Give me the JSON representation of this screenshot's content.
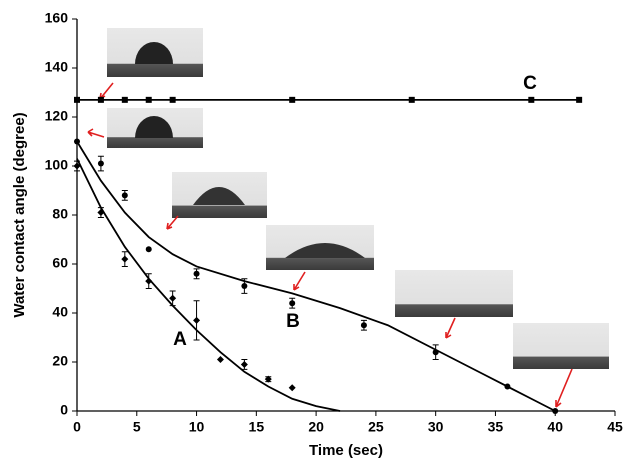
{
  "chart_data": {
    "type": "scatter",
    "x_label": "Time (sec)",
    "y_label": "Water contact angle (degree)",
    "xlim": [
      0,
      45
    ],
    "xticks": [
      0,
      5,
      10,
      15,
      20,
      25,
      30,
      35,
      40,
      45
    ],
    "ylim": [
      0,
      160
    ],
    "yticks": [
      0,
      20,
      40,
      60,
      80,
      100,
      120,
      140,
      160
    ],
    "grid": false,
    "series": [
      {
        "name": "A",
        "color": "#000000",
        "marker": "diamond",
        "x": [
          0,
          2,
          4,
          6,
          8,
          10,
          12,
          14,
          16,
          18
        ],
        "values": [
          100,
          81,
          62,
          53,
          46,
          37,
          21,
          19,
          13,
          9.5
        ],
        "errors": [
          2,
          2,
          3,
          3,
          3,
          8,
          0,
          2,
          1,
          0
        ],
        "fit": {
          "x": [
            0,
            2,
            4,
            6,
            8,
            10,
            12,
            14,
            16,
            18,
            20,
            22
          ],
          "values": [
            103,
            83,
            67,
            54,
            43,
            33,
            24,
            16,
            10,
            5,
            2,
            0
          ]
        }
      },
      {
        "name": "B",
        "color": "#000000",
        "marker": "circle",
        "x": [
          0,
          2,
          4,
          6,
          10,
          14,
          18,
          24,
          30,
          36,
          40
        ],
        "values": [
          110,
          101,
          88,
          66,
          56,
          51,
          44,
          35,
          24,
          10,
          0
        ],
        "errors": [
          0,
          3,
          2,
          0,
          2,
          3,
          2,
          2,
          3,
          0,
          0
        ],
        "fit": {
          "x": [
            0,
            2,
            4,
            6,
            8,
            10,
            14,
            18,
            22,
            26,
            30,
            34,
            38,
            40
          ],
          "values": [
            110,
            94,
            81,
            71,
            64,
            59,
            53,
            48,
            42,
            35,
            25,
            15,
            5,
            0
          ]
        }
      },
      {
        "name": "C",
        "color": "#000000",
        "marker": "square",
        "x": [
          0,
          2,
          4,
          6,
          8,
          18,
          28,
          38,
          42
        ],
        "values": [
          127,
          127,
          127,
          127,
          127,
          127,
          127,
          127,
          127
        ],
        "errors": [
          0,
          0,
          0,
          0,
          0,
          0,
          0,
          0,
          0
        ],
        "fit": {
          "x": [
            0,
            42
          ],
          "values": [
            127,
            127
          ]
        }
      }
    ]
  }
}
